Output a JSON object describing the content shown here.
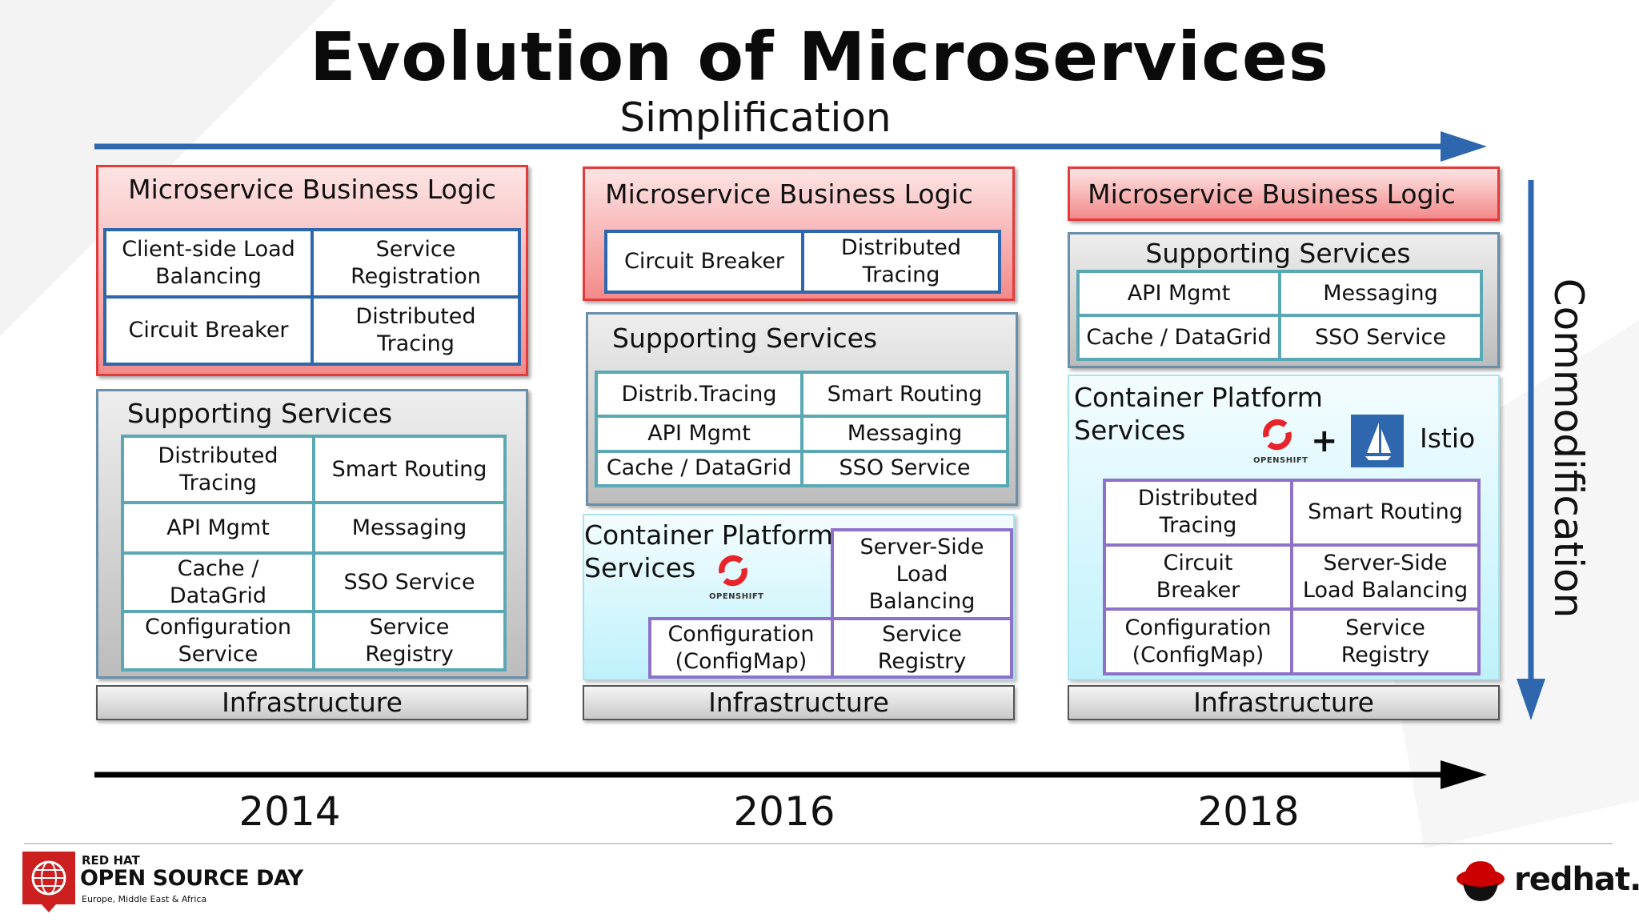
{
  "title": "Evolution of Microservices",
  "subtitle": "Simplification",
  "side_label": "Commodification",
  "years": [
    "2014",
    "2016",
    "2018"
  ],
  "columns": [
    {
      "business_logic": {
        "title": "Microservice Business Logic",
        "cells": [
          "Client-side Load\nBalancing",
          "Service\nRegistration",
          "Circuit Breaker",
          "Distributed\nTracing"
        ]
      },
      "supporting": {
        "title": "Supporting Services",
        "cells": [
          "Distributed\nTracing",
          "Smart Routing",
          "API Mgmt",
          "Messaging",
          "Cache /\nDataGrid",
          "SSO Service",
          "Configuration\nService",
          "Service\nRegistry"
        ]
      },
      "infrastructure": "Infrastructure"
    },
    {
      "business_logic": {
        "title": "Microservice Business Logic",
        "cells": [
          "Circuit Breaker",
          "Distributed\nTracing"
        ]
      },
      "supporting": {
        "title": "Supporting Services",
        "cells": [
          "Distrib.Tracing",
          "Smart Routing",
          "API Mgmt",
          "Messaging",
          "Cache / DataGrid",
          "SSO Service"
        ]
      },
      "container": {
        "title": "Container Platform\nServices",
        "logo_text": "OPENSHIFT",
        "cells": [
          "Server-Side\nLoad\nBalancing",
          "Configuration\n(ConfigMap)",
          "Service\nRegistry"
        ]
      },
      "infrastructure": "Infrastructure"
    },
    {
      "business_logic": {
        "title": "Microservice Business Logic"
      },
      "supporting": {
        "title": "Supporting Services",
        "cells": [
          "API Mgmt",
          "Messaging",
          "Cache / DataGrid",
          "SSO Service"
        ]
      },
      "container": {
        "title": "Container Platform\nServices",
        "logo_text": "OPENSHIFT",
        "plus": "+",
        "istio": "Istio",
        "cells": [
          "Distributed\nTracing",
          "Smart Routing",
          "Circuit\nBreaker",
          "Server-Side\nLoad Balancing",
          "Configuration\n(ConfigMap)",
          "Service\nRegistry"
        ]
      },
      "infrastructure": "Infrastructure"
    }
  ],
  "footer": {
    "event_line1": "RED HAT",
    "event_line2": "OPEN SOURCE DAY",
    "event_line3": "Europe, Middle East & Africa",
    "brand": "redhat."
  },
  "colors": {
    "arrow_blue": "#2e67ad",
    "red_border": "#e23b3b",
    "teal_border": "#5aa8b4",
    "purple_border": "#8e72c9",
    "openshift_red": "#e8232a"
  }
}
